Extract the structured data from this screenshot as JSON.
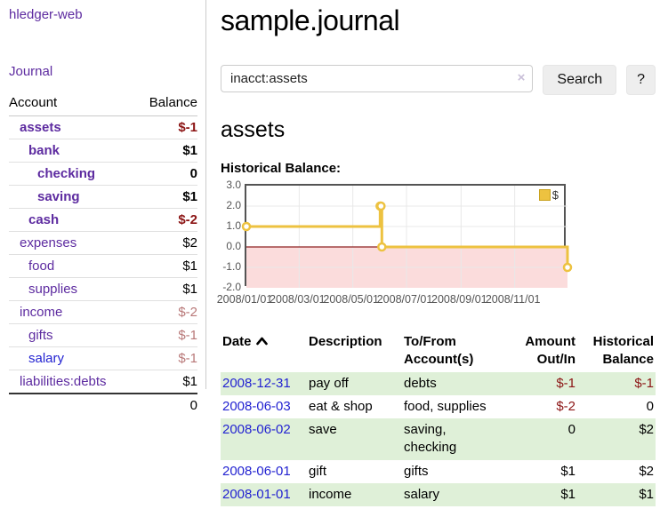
{
  "app": {
    "brand": "hledger-web",
    "nav": {
      "journal": "Journal"
    }
  },
  "sidebar": {
    "columns": {
      "account": "Account",
      "balance": "Balance"
    },
    "accounts": [
      {
        "name": "assets",
        "balance": "$-1"
      },
      {
        "name": "bank",
        "balance": "$1"
      },
      {
        "name": "checking",
        "balance": "0"
      },
      {
        "name": "saving",
        "balance": "$1"
      },
      {
        "name": "cash",
        "balance": "$-2"
      },
      {
        "name": "expenses",
        "balance": "$2"
      },
      {
        "name": "food",
        "balance": "$1"
      },
      {
        "name": "supplies",
        "balance": "$1"
      },
      {
        "name": "income",
        "balance": "$-2"
      },
      {
        "name": "gifts",
        "balance": "$-1"
      },
      {
        "name": "salary",
        "balance": "$-1"
      },
      {
        "name": "liabilities:debts",
        "balance": "$1"
      }
    ],
    "total": "0"
  },
  "main": {
    "title": "sample.journal",
    "search": {
      "value": "inacct:assets",
      "clear_icon": "×",
      "search_button": "Search",
      "help_button": "?"
    },
    "account_heading": "assets",
    "chart_title": "Historical Balance:"
  },
  "chart_data": {
    "type": "line",
    "step": true,
    "title": "Historical Balance:",
    "legend": {
      "label": "$",
      "position": "top-right",
      "swatch_color": "#edc240",
      "swatch_border": "#c9a21e"
    },
    "series": [
      {
        "name": "$",
        "color": "#edc240",
        "points": [
          [
            "2008/01/01",
            1
          ],
          [
            "2008/06/01",
            2
          ],
          [
            "2008/06/02",
            2
          ],
          [
            "2008/06/03",
            0
          ],
          [
            "2008/12/31",
            -1
          ]
        ]
      }
    ],
    "x_range": [
      "2008/01/01",
      "2008/12/31"
    ],
    "ylim": [
      -2,
      3
    ],
    "yticks": [
      3.0,
      2.0,
      1.0,
      0.0,
      -1.0,
      -2.0
    ],
    "ytick_labels": [
      "3.0",
      "2.0",
      "1.0",
      "0.0",
      "-1.0",
      "-2.0"
    ],
    "xticks": [
      "2008/01/01",
      "2008/03/01",
      "2008/05/01",
      "2008/07/01",
      "2008/09/01",
      "2008/11/01"
    ],
    "grid": true,
    "colors": {
      "negative_region": "#fbdcdc",
      "zero_line": "#8e2020",
      "grid_line": "#e8e8e8",
      "frame": "#545454"
    }
  },
  "register": {
    "headers": {
      "date": "Date",
      "description": "Description",
      "accounts": "To/From Account(s)",
      "amount": "Amount Out/In",
      "balance": "Historical Balance"
    },
    "sort": "ascending",
    "rows": [
      {
        "date": "2008-12-31",
        "description": "pay off",
        "accounts": "debts",
        "amount": "$-1",
        "balance": "$-1"
      },
      {
        "date": "2008-06-03",
        "description": "eat & shop",
        "accounts": "food, supplies",
        "amount": "$-2",
        "balance": "0"
      },
      {
        "date": "2008-06-02",
        "description": "save",
        "accounts": "saving, checking",
        "amount": "0",
        "balance": "$2"
      },
      {
        "date": "2008-06-01",
        "description": "gift",
        "accounts": "gifts",
        "amount": "$1",
        "balance": "$2"
      },
      {
        "date": "2008-01-01",
        "description": "income",
        "accounts": "salary",
        "amount": "$1",
        "balance": "$1"
      }
    ]
  }
}
